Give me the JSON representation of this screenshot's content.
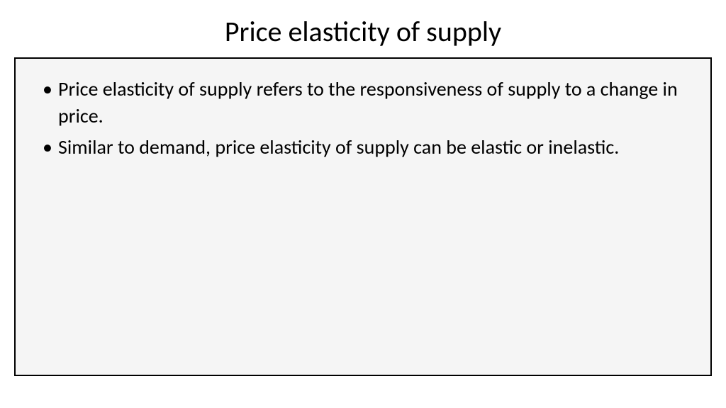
{
  "slide": {
    "title": "Price elasticity of supply",
    "bullets": [
      "Price elasticity of supply refers to the responsiveness of supply to a change in price.",
      "Similar to demand, price elasticity of supply can be elastic or inelastic."
    ]
  },
  "styling": {
    "background_color": "#ffffff",
    "box_background_color": "#f5f5f5",
    "box_border_color": "#000000",
    "text_color": "#000000",
    "title_fontsize": 40,
    "body_fontsize": 28
  }
}
